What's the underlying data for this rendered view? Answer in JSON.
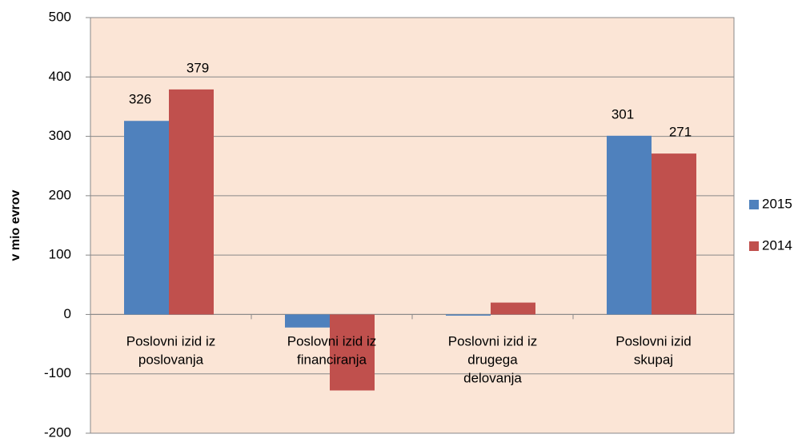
{
  "chart_data": {
    "type": "bar",
    "y_axis_label": "v mio evrov",
    "categories": [
      [
        "Poslovni izid iz",
        "poslovanja"
      ],
      [
        "Poslovni izid iz",
        "financiranja"
      ],
      [
        "Poslovni izid iz",
        "drugega",
        "delovanja"
      ],
      [
        "Poslovni izid",
        "skupaj"
      ]
    ],
    "series": [
      {
        "name": "2015",
        "color": "#4f81bd",
        "values": [
          326,
          -22,
          -2,
          301
        ],
        "value_labels": [
          "326",
          null,
          null,
          "301"
        ]
      },
      {
        "name": "2014",
        "color": "#c0504d",
        "values": [
          379,
          -128,
          20,
          271
        ],
        "value_labels": [
          "379",
          null,
          null,
          "271"
        ]
      }
    ],
    "ylim": [
      -200,
      500
    ],
    "yticks": [
      -200,
      -100,
      0,
      100,
      200,
      300,
      400,
      500
    ],
    "grid": true,
    "legend": "right",
    "plot_background": "#fbe5d6"
  }
}
